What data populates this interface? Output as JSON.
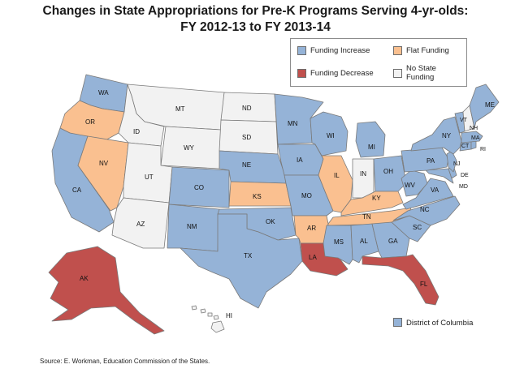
{
  "title_line1": "Changes in State Appropriations for Pre-K Programs Serving 4-yr-olds:",
  "title_line2": "FY 2012-13  to FY 2013-14",
  "colors": {
    "increase": "#95b3d7",
    "flat": "#fac090",
    "decrease": "#c0504d",
    "none": "#f2f2f2",
    "border": "#7a7a7a"
  },
  "legend": {
    "increase": "Funding Increase",
    "flat": "Flat Funding",
    "decrease": "Funding Decrease",
    "none": "No State\nFunding"
  },
  "dc_label": "District of Columbia",
  "dc_category": "increase",
  "source": "Source: E. Workman, Education Commission of the States.",
  "states": {
    "WA": "increase",
    "OR": "flat",
    "CA": "increase",
    "NV": "flat",
    "ID": "none",
    "MT": "none",
    "WY": "none",
    "UT": "none",
    "AZ": "none",
    "CO": "increase",
    "NM": "increase",
    "ND": "none",
    "SD": "none",
    "NE": "increase",
    "KS": "flat",
    "OK": "increase",
    "TX": "increase",
    "MN": "increase",
    "IA": "increase",
    "MO": "increase",
    "AR": "flat",
    "LA": "decrease",
    "WI": "increase",
    "IL": "flat",
    "MI": "increase",
    "IN": "none",
    "OH": "increase",
    "KY": "flat",
    "TN": "flat",
    "MS": "increase",
    "AL": "increase",
    "GA": "increase",
    "FL": "decrease",
    "SC": "increase",
    "NC": "increase",
    "VA": "increase",
    "WV": "increase",
    "MD": "increase",
    "DE": "increase",
    "PA": "increase",
    "NJ": "increase",
    "NY": "increase",
    "CT": "increase",
    "RI": "increase",
    "MA": "increase",
    "VT": "increase",
    "NH": "none",
    "ME": "increase",
    "AK": "decrease",
    "HI": "none"
  }
}
